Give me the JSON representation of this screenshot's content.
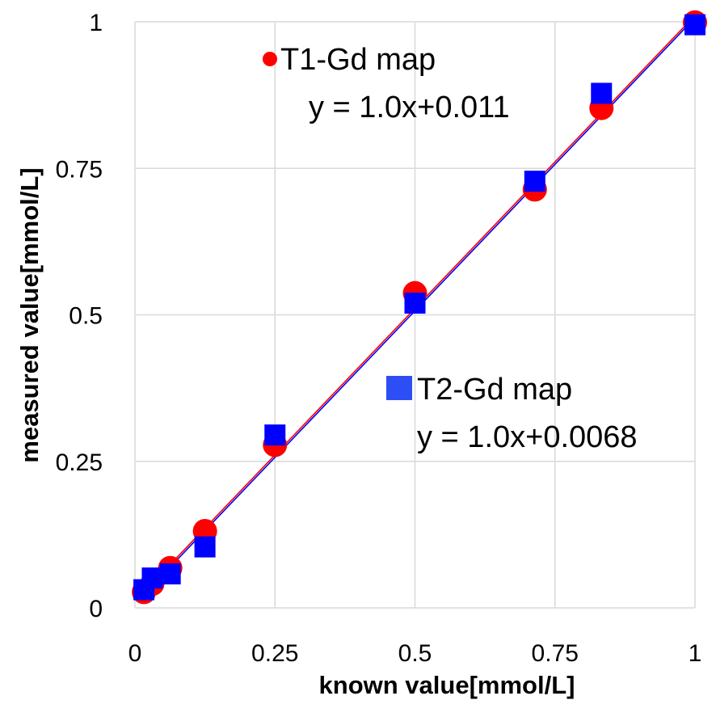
{
  "chart_data": {
    "type": "scatter",
    "title": "",
    "xlabel": "known value[mmol/L]",
    "ylabel": "measured value[mmol/L]",
    "xlim": [
      0,
      1
    ],
    "ylim": [
      0,
      1
    ],
    "grid": true,
    "x_ticks": [
      {
        "value": 0,
        "label": "0"
      },
      {
        "value": 0.25,
        "label": "0.25"
      },
      {
        "value": 0.5,
        "label": "0.5"
      },
      {
        "value": 0.75,
        "label": "0.75"
      },
      {
        "value": 1,
        "label": "1"
      }
    ],
    "y_ticks": [
      {
        "value": 0,
        "label": "0"
      },
      {
        "value": 0.25,
        "label": "0.25"
      },
      {
        "value": 0.5,
        "label": "0.5"
      },
      {
        "value": 0.75,
        "label": "0.75"
      },
      {
        "value": 1,
        "label": "1"
      }
    ],
    "series": [
      {
        "name": "T1-Gd map",
        "marker": "circle",
        "color": "#ff0000",
        "legend_color": "#ff0000",
        "fit_label": "y = 1.0x+0.011",
        "fit": {
          "slope": 1.0,
          "intercept": 0.011
        },
        "points": [
          {
            "x": 0.016,
            "y": 0.027
          },
          {
            "x": 0.031,
            "y": 0.041
          },
          {
            "x": 0.063,
            "y": 0.068
          },
          {
            "x": 0.125,
            "y": 0.131
          },
          {
            "x": 0.25,
            "y": 0.278
          },
          {
            "x": 0.5,
            "y": 0.537
          },
          {
            "x": 0.714,
            "y": 0.714
          },
          {
            "x": 0.833,
            "y": 0.853
          },
          {
            "x": 1.0,
            "y": 0.999
          }
        ]
      },
      {
        "name": "T2-Gd map",
        "marker": "square",
        "color": "#0000ff",
        "legend_color": "#2d4ef5",
        "fit_label": "y = 1.0x+0.0068",
        "fit": {
          "slope": 1.0,
          "intercept": 0.0068
        },
        "points": [
          {
            "x": 0.016,
            "y": 0.031
          },
          {
            "x": 0.031,
            "y": 0.051
          },
          {
            "x": 0.063,
            "y": 0.058
          },
          {
            "x": 0.125,
            "y": 0.104
          },
          {
            "x": 0.25,
            "y": 0.295
          },
          {
            "x": 0.5,
            "y": 0.52
          },
          {
            "x": 0.714,
            "y": 0.728
          },
          {
            "x": 0.833,
            "y": 0.878
          },
          {
            "x": 1.0,
            "y": 0.995
          }
        ]
      }
    ]
  }
}
